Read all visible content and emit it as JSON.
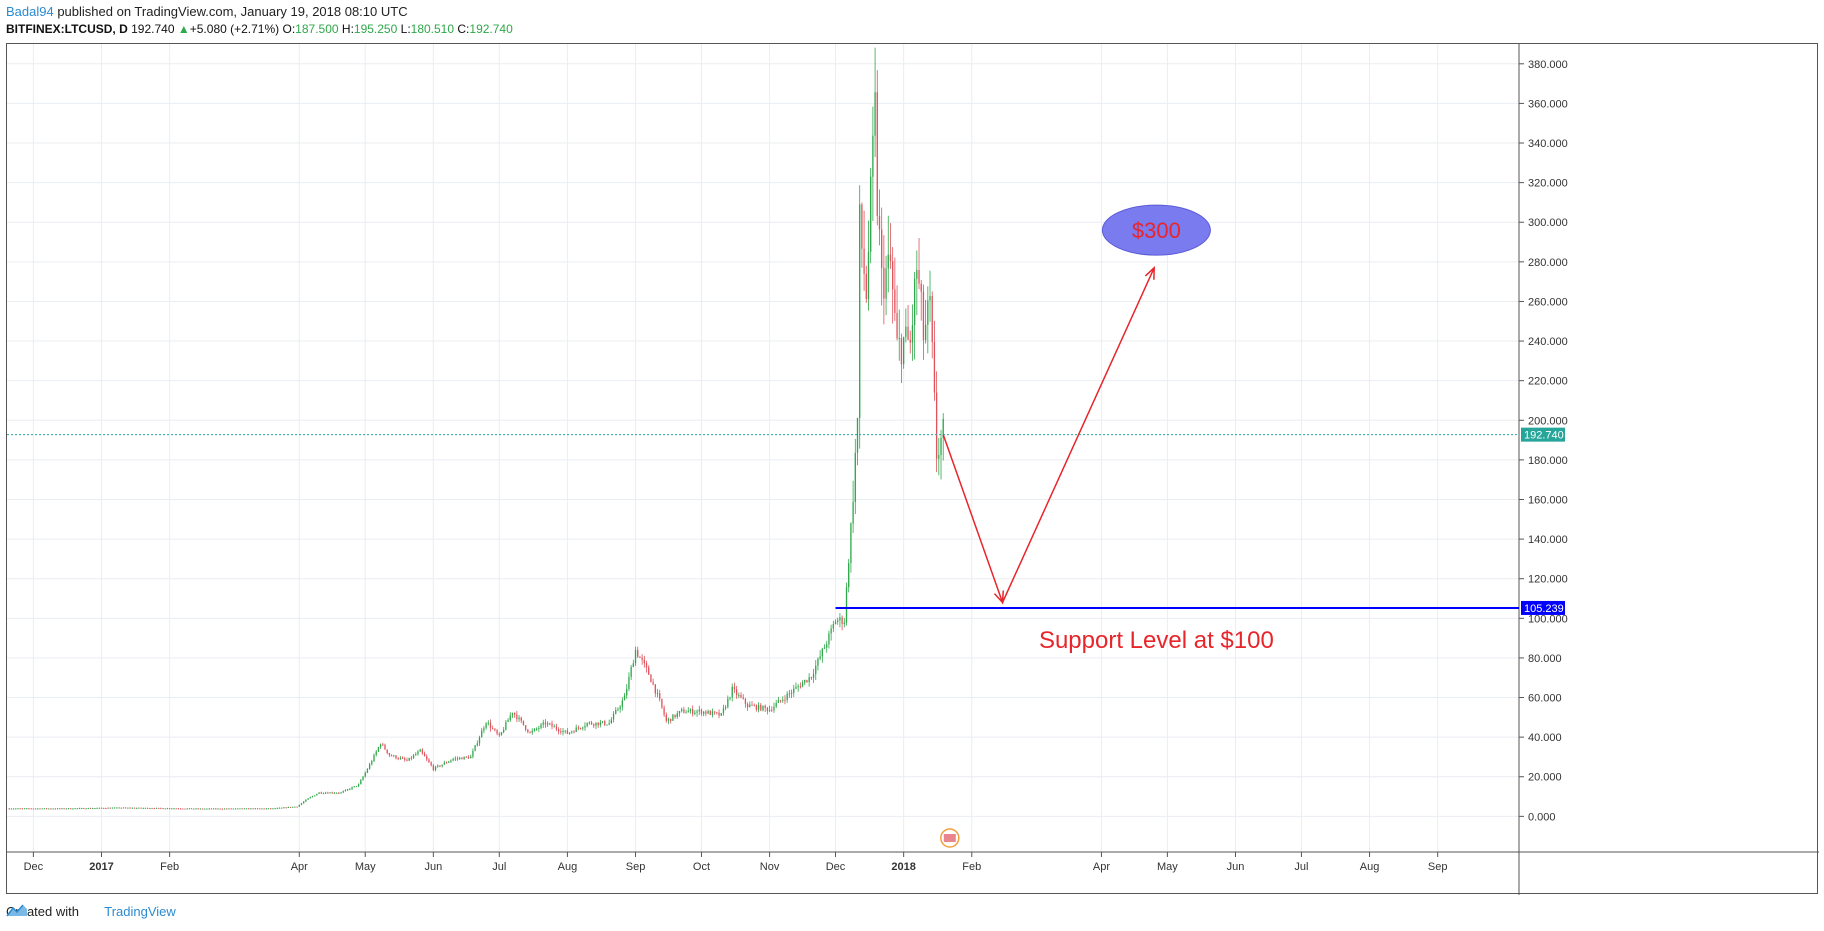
{
  "header": {
    "author": "Badal94",
    "published_text": " published on TradingView.com, January 19, 2018 08:10 UTC",
    "symbol": "BITFINEX:LTCUSD, D",
    "last": "192.740",
    "change": "+5.080 (+2.71%)",
    "o_label": "O:",
    "o_value": "187.500",
    "h_label": "H:",
    "h_value": "195.250",
    "l_label": "L:",
    "l_value": "180.510",
    "c_label": "C:",
    "c_value": "192.740"
  },
  "footer": {
    "created_with": "Created with",
    "brand": "TradingView"
  },
  "colors": {
    "up": "#2ea84a",
    "down": "#e0525c",
    "support": "#0000ff",
    "arrow": "#e8252b",
    "ellipse": "#7b7bf0",
    "price_line": "#26a69a"
  },
  "chart_data": {
    "type": "candlestick",
    "symbol": "BITFINEX:LTCUSD",
    "interval": "D",
    "y_ticks": [
      "0.000",
      "20.000",
      "40.000",
      "60.000",
      "80.000",
      "100.000",
      "120.000",
      "140.000",
      "160.000",
      "180.000",
      "200.000",
      "220.000",
      "240.000",
      "260.000",
      "280.000",
      "300.000",
      "320.000",
      "340.000",
      "360.000",
      "380.000"
    ],
    "ylim": [
      -18,
      390
    ],
    "x_ticks": [
      {
        "label": "Dec",
        "date": "2016-12-01",
        "bold": false
      },
      {
        "label": "2017",
        "date": "2017-01-01",
        "bold": true
      },
      {
        "label": "Feb",
        "date": "2017-02-01",
        "bold": false
      },
      {
        "label": "Apr",
        "date": "2017-04-01",
        "bold": false
      },
      {
        "label": "May",
        "date": "2017-05-01",
        "bold": false
      },
      {
        "label": "Jun",
        "date": "2017-06-01",
        "bold": false
      },
      {
        "label": "Jul",
        "date": "2017-07-01",
        "bold": false
      },
      {
        "label": "Aug",
        "date": "2017-08-01",
        "bold": false
      },
      {
        "label": "Sep",
        "date": "2017-09-01",
        "bold": false
      },
      {
        "label": "Oct",
        "date": "2017-10-01",
        "bold": false
      },
      {
        "label": "Nov",
        "date": "2017-11-01",
        "bold": false
      },
      {
        "label": "Dec",
        "date": "2017-12-01",
        "bold": false
      },
      {
        "label": "2018",
        "date": "2018-01-01",
        "bold": true
      },
      {
        "label": "Feb",
        "date": "2018-02-01",
        "bold": false
      },
      {
        "label": "Apr",
        "date": "2018-04-01",
        "bold": false
      },
      {
        "label": "May",
        "date": "2018-05-01",
        "bold": false
      },
      {
        "label": "Jun",
        "date": "2018-06-01",
        "bold": false
      },
      {
        "label": "Jul",
        "date": "2018-07-01",
        "bold": false
      },
      {
        "label": "Aug",
        "date": "2018-08-01",
        "bold": false
      },
      {
        "label": "Sep",
        "date": "2018-09-01",
        "bold": false
      }
    ],
    "x_range": [
      "2016-11-19",
      "2018-10-08"
    ],
    "series": [
      {
        "name": "LTCUSD",
        "points": [
          [
            "2016-11-20",
            4.0
          ],
          [
            "2016-12-15",
            4.0
          ],
          [
            "2017-01-10",
            4.4
          ],
          [
            "2017-02-15",
            3.9
          ],
          [
            "2017-03-20",
            4.0
          ],
          [
            "2017-03-31",
            5.0
          ],
          [
            "2017-04-05",
            9.0
          ],
          [
            "2017-04-10",
            12.0
          ],
          [
            "2017-04-20",
            12.0
          ],
          [
            "2017-04-28",
            16.0
          ],
          [
            "2017-05-03",
            26.0
          ],
          [
            "2017-05-08",
            37.0
          ],
          [
            "2017-05-12",
            31.0
          ],
          [
            "2017-05-20",
            28.0
          ],
          [
            "2017-05-26",
            33.0
          ],
          [
            "2017-06-01",
            24.0
          ],
          [
            "2017-06-10",
            29.0
          ],
          [
            "2017-06-18",
            30.0
          ],
          [
            "2017-06-25",
            48.0
          ],
          [
            "2017-07-01",
            40.0
          ],
          [
            "2017-07-07",
            53.0
          ],
          [
            "2017-07-15",
            42.0
          ],
          [
            "2017-07-22",
            47.0
          ],
          [
            "2017-08-01",
            42.0
          ],
          [
            "2017-08-10",
            47.0
          ],
          [
            "2017-08-20",
            47.0
          ],
          [
            "2017-08-27",
            60.0
          ],
          [
            "2017-09-01",
            84.0
          ],
          [
            "2017-09-07",
            72.0
          ],
          [
            "2017-09-12",
            58.0
          ],
          [
            "2017-09-15",
            48.0
          ],
          [
            "2017-09-22",
            53.0
          ],
          [
            "2017-10-01",
            53.0
          ],
          [
            "2017-10-10",
            51.0
          ],
          [
            "2017-10-15",
            64.0
          ],
          [
            "2017-10-22",
            56.0
          ],
          [
            "2017-11-01",
            54.0
          ],
          [
            "2017-11-10",
            62.0
          ],
          [
            "2017-11-20",
            71.0
          ],
          [
            "2017-11-27",
            88.0
          ],
          [
            "2017-12-01",
            99.0
          ],
          [
            "2017-12-05",
            99.0
          ],
          [
            "2017-12-08",
            146.0
          ],
          [
            "2017-12-11",
            200.0
          ],
          [
            "2017-12-12",
            298.0
          ],
          [
            "2017-12-15",
            264.0
          ],
          [
            "2017-12-19",
            355.0
          ],
          [
            "2017-12-20",
            310.0
          ],
          [
            "2017-12-22",
            270.0
          ],
          [
            "2017-12-26",
            278.0
          ],
          [
            "2017-12-29",
            236.0
          ],
          [
            "2018-01-01",
            240.0
          ],
          [
            "2018-01-04",
            238.0
          ],
          [
            "2018-01-07",
            277.0
          ],
          [
            "2018-01-10",
            243.0
          ],
          [
            "2018-01-13",
            256.0
          ],
          [
            "2018-01-16",
            183.0
          ],
          [
            "2018-01-19",
            192.74
          ]
        ]
      }
    ],
    "last_price_label": "192.740",
    "support_level_label": "105.239",
    "support_level": 105.239,
    "support_start": "2017-12-01",
    "forecast_arrow": [
      [
        "2018-01-19",
        192.74
      ],
      [
        "2018-02-15",
        108.0
      ],
      [
        "2018-04-25",
        277.0
      ]
    ],
    "annotations": {
      "target_text": "$300",
      "target_date": "2018-04-26",
      "target_value": 296,
      "support_text": "Support Level at $100",
      "support_text_date": "2018-04-26",
      "support_text_value": 89
    },
    "grid": true
  }
}
